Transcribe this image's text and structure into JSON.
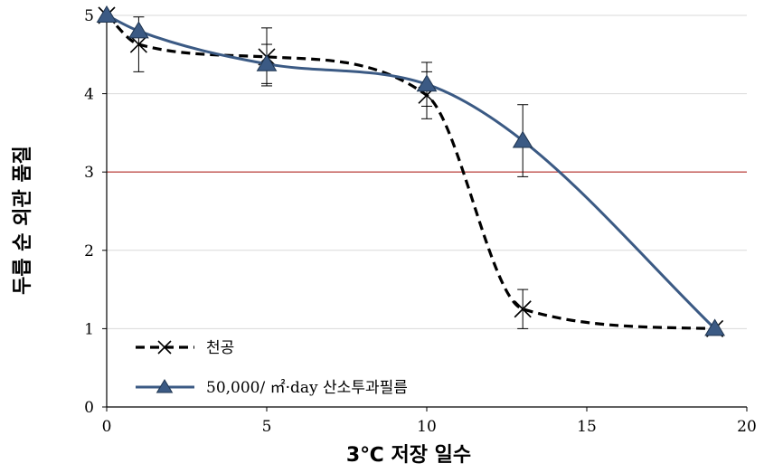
{
  "chart_data": {
    "type": "line",
    "xlabel": "3℃ 저장 일수",
    "ylabel": "두릅 순 외관 품질",
    "xlim": [
      0,
      20
    ],
    "ylim": [
      0,
      5
    ],
    "x_ticks": [
      "0",
      "5",
      "10",
      "15",
      "20"
    ],
    "y_ticks": [
      "0",
      "1",
      "2",
      "3",
      "4",
      "5"
    ],
    "grid": "horizontal",
    "reference_line": {
      "y": 3,
      "color": "#c0504d"
    },
    "legend_position": "bottom-left",
    "series": [
      {
        "name": "천공",
        "color": "#000000",
        "line_style": "dashed",
        "marker": "x",
        "x": [
          0,
          1,
          5,
          10,
          13,
          19
        ],
        "y": [
          5.0,
          4.63,
          4.47,
          3.98,
          1.25,
          1.0
        ],
        "error": [
          0,
          0.35,
          0.37,
          0.3,
          0.25,
          0
        ]
      },
      {
        "name": "50,000/ ㎡·day 산소투과필름",
        "color": "#3b5a84",
        "line_style": "solid",
        "marker": "triangle",
        "x": [
          0,
          1,
          5,
          10,
          13,
          19
        ],
        "y": [
          5.0,
          4.8,
          4.38,
          4.12,
          3.4,
          1.0
        ],
        "error": [
          0,
          0.0,
          0.25,
          0.28,
          0.46,
          0
        ]
      }
    ]
  }
}
